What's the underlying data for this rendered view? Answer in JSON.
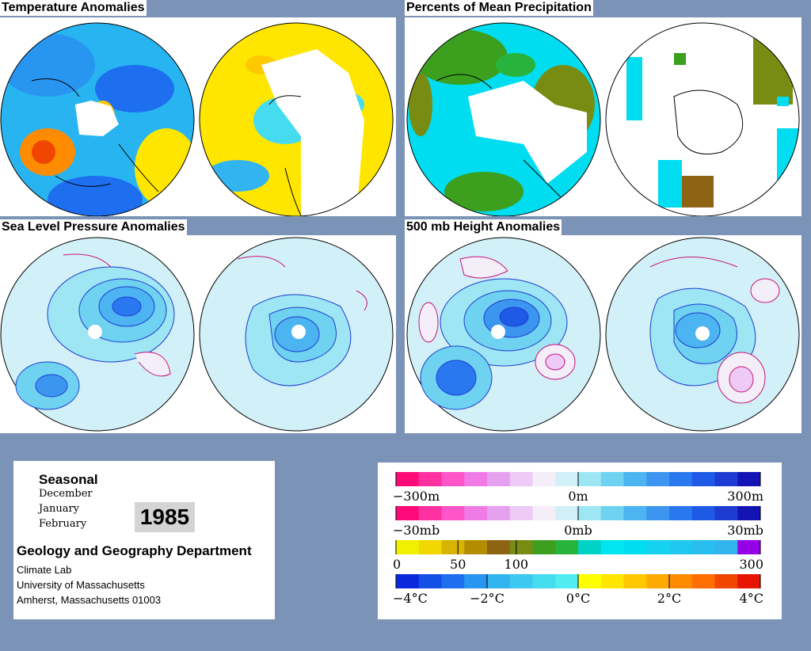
{
  "panels": [
    {
      "id": "temperature",
      "title": "Temperature Anomalies"
    },
    {
      "id": "precipitation",
      "title": "Percents of Mean Precipitation"
    },
    {
      "id": "slp",
      "title": "Sea Level Pressure Anomalies"
    },
    {
      "id": "height500",
      "title": "500 mb Height Anomalies"
    }
  ],
  "info": {
    "period_type": "Seasonal",
    "months": [
      "December",
      "January",
      "February"
    ],
    "year": "1985",
    "department": "Geology and Geography Department",
    "address": [
      "Climate Lab",
      "University of Massachusetts",
      "Amherst, Massachusetts 01003"
    ]
  },
  "legends": [
    {
      "id": "height",
      "colors": [
        "#ff0a78",
        "#ff30a0",
        "#ff55c8",
        "#f07be6",
        "#e6a0f0",
        "#eecaf6",
        "#f4eef8",
        "#d2f0f8",
        "#9ee6f4",
        "#6ed2f0",
        "#4cb4f0",
        "#3c96f0",
        "#2a78f0",
        "#1e5ae6",
        "#1e3cd2",
        "#1414b4"
      ],
      "labels": [
        "−300m",
        "0m",
        "300m"
      ],
      "label_pos": [
        0,
        0.5,
        1
      ]
    },
    {
      "id": "pressure",
      "colors": [
        "#ff0a78",
        "#ff30a0",
        "#ff55c8",
        "#f07be6",
        "#e6a0f0",
        "#eecaf6",
        "#f4eef8",
        "#d2f0f8",
        "#9ee6f4",
        "#6ed2f0",
        "#4cb4f0",
        "#3c96f0",
        "#2a78f0",
        "#1e5ae6",
        "#1e3cd2",
        "#1414b4"
      ],
      "labels": [
        "−30mb",
        "0mb",
        "30mb"
      ],
      "label_pos": [
        0,
        0.5,
        1
      ]
    },
    {
      "id": "precip",
      "colors": [
        "#f0f000",
        "#f0d800",
        "#d8b400",
        "#b48c00",
        "#8c6414",
        "#788c14",
        "#3ca01e",
        "#28b43c",
        "#00d2c8",
        "#00e6f0",
        "#00dcf0",
        "#14d2f0",
        "#1ec8f0",
        "#28beee",
        "#32b4ee",
        "#9600e6"
      ],
      "labels": [
        "0",
        "50",
        "100",
        "300"
      ],
      "label_pos": [
        0,
        0.17,
        0.33,
        1
      ]
    },
    {
      "id": "temp",
      "colors": [
        "#0a28dc",
        "#1450e6",
        "#1e6ef0",
        "#2896f0",
        "#32b4f0",
        "#3cc8f0",
        "#46dcf0",
        "#50ecf0",
        "#ffff00",
        "#ffe600",
        "#ffc800",
        "#ffaa00",
        "#ff8c00",
        "#ff6e00",
        "#f04600",
        "#e61400"
      ],
      "labels": [
        "−4°C",
        "−2°C",
        "0°C",
        "2°C",
        "4°C"
      ],
      "label_pos": [
        0,
        0.25,
        0.5,
        0.75,
        1
      ]
    }
  ]
}
